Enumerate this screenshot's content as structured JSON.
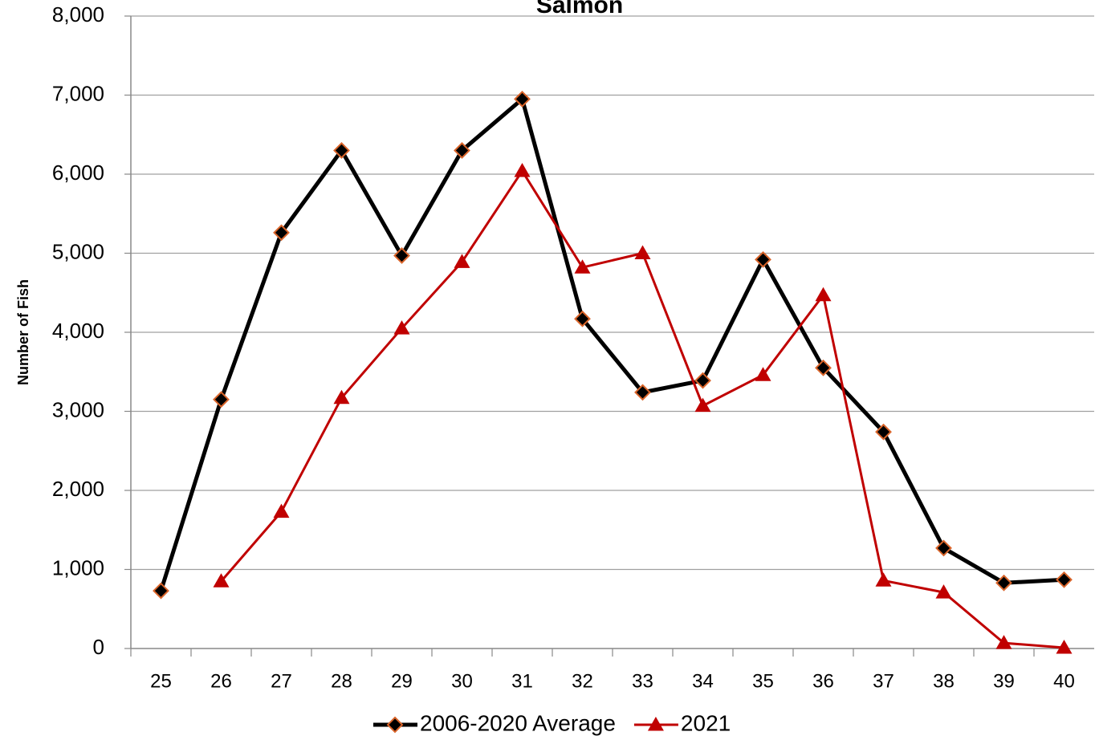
{
  "chart_data": {
    "type": "line",
    "title": "Salmon",
    "y_label": "Number of Fish",
    "categories": [
      25,
      26,
      27,
      28,
      29,
      30,
      31,
      32,
      33,
      34,
      35,
      36,
      37,
      38,
      39,
      40
    ],
    "series": [
      {
        "name": "2006-2020 Average",
        "color": "#000000",
        "marker": "diamond",
        "marker_edge": "#d9642a",
        "values": [
          730,
          3150,
          5260,
          6300,
          4970,
          6300,
          6950,
          4170,
          3240,
          3390,
          4920,
          3550,
          2740,
          1270,
          830,
          870
        ]
      },
      {
        "name": "2021",
        "color": "#c00000",
        "marker": "triangle",
        "values": [
          null,
          850,
          1730,
          3170,
          4050,
          4890,
          6040,
          4820,
          5000,
          3070,
          3460,
          4470,
          860,
          710,
          70,
          10
        ]
      }
    ],
    "ylim": [
      0,
      8000
    ],
    "yticks": [
      0,
      {
        "value": 1000,
        "label": "1,000"
      },
      {
        "value": 2000,
        "label": "2,000"
      },
      {
        "value": 3000,
        "label": "3,000"
      },
      {
        "value": 4000,
        "label": "4,000"
      },
      {
        "value": 5000,
        "label": "5,000"
      },
      {
        "value": 6000,
        "label": "6,000"
      },
      {
        "value": 7000,
        "label": "7,000"
      },
      {
        "value": 8000,
        "label": "8,000"
      }
    ],
    "grid": true,
    "legend": "bottom"
  }
}
